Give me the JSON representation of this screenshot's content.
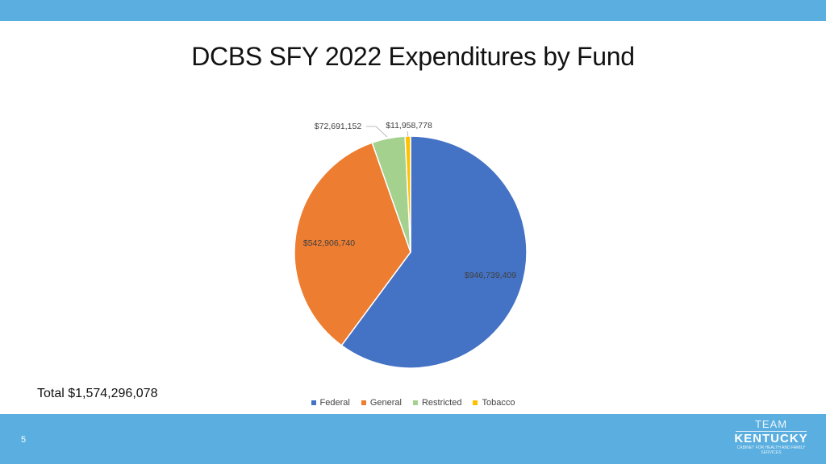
{
  "slide": {
    "title": "DCBS SFY 2022 Expenditures by Fund",
    "total_text": "Total $1,574,296,078",
    "page_number": "5"
  },
  "logo": {
    "line1": "TEAM",
    "line2": "KENTUCKY",
    "line3": "CABINET FOR HEALTH AND FAMILY SERVICES"
  },
  "colors": {
    "band": "#5aafe0"
  },
  "chart_data": {
    "type": "pie",
    "title": "DCBS SFY 2022 Expenditures by Fund",
    "legend_position": "bottom",
    "slices": [
      {
        "label": "Federal",
        "value": 946739409,
        "data_label": "$946,739,409",
        "color": "#4472c4"
      },
      {
        "label": "General",
        "value": 542906740,
        "data_label": "$542,906,740",
        "color": "#ed7d31"
      },
      {
        "label": "Restricted",
        "value": 72691152,
        "data_label": "$72,691,152",
        "color": "#a5d18f"
      },
      {
        "label": "Tobacco",
        "value": 11958778,
        "data_label": "$11,958,778",
        "color": "#ffc000"
      }
    ]
  }
}
